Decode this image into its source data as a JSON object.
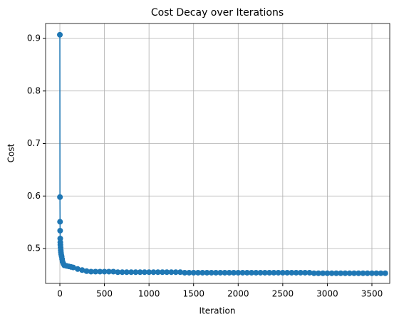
{
  "chart_data": {
    "type": "line",
    "title": "Cost Decay over Iterations",
    "xlabel": "Iteration",
    "ylabel": "Cost",
    "x": [
      0,
      1,
      2,
      3,
      4,
      5,
      6,
      8,
      10,
      12,
      15,
      20,
      25,
      30,
      40,
      50,
      75,
      100,
      125,
      150,
      200,
      250,
      300,
      350,
      400,
      450,
      500,
      550,
      600,
      650,
      700,
      750,
      800,
      850,
      900,
      950,
      1000,
      1050,
      1100,
      1150,
      1200,
      1250,
      1300,
      1350,
      1400,
      1450,
      1500,
      1550,
      1600,
      1650,
      1700,
      1750,
      1800,
      1850,
      1900,
      1950,
      2000,
      2050,
      2100,
      2150,
      2200,
      2250,
      2300,
      2350,
      2400,
      2450,
      2500,
      2550,
      2600,
      2650,
      2700,
      2750,
      2800,
      2850,
      2900,
      2950,
      3000,
      3050,
      3100,
      3150,
      3200,
      3250,
      3300,
      3350,
      3400,
      3450,
      3500,
      3550,
      3600,
      3650
    ],
    "series": [
      {
        "name": "Cost",
        "color": "#1f77b4",
        "values": [
          0.907,
          0.598,
          0.551,
          0.534,
          0.519,
          0.512,
          0.507,
          0.502,
          0.497,
          0.493,
          0.489,
          0.485,
          0.48,
          0.475,
          0.471,
          0.468,
          0.467,
          0.466,
          0.465,
          0.464,
          0.461,
          0.459,
          0.457,
          0.456,
          0.456,
          0.456,
          0.456,
          0.456,
          0.456,
          0.455,
          0.455,
          0.455,
          0.455,
          0.455,
          0.455,
          0.455,
          0.455,
          0.455,
          0.455,
          0.455,
          0.455,
          0.455,
          0.455,
          0.455,
          0.454,
          0.454,
          0.454,
          0.454,
          0.454,
          0.454,
          0.454,
          0.454,
          0.454,
          0.454,
          0.454,
          0.454,
          0.454,
          0.454,
          0.454,
          0.454,
          0.454,
          0.454,
          0.454,
          0.454,
          0.454,
          0.454,
          0.454,
          0.454,
          0.454,
          0.454,
          0.454,
          0.454,
          0.454,
          0.453,
          0.453,
          0.453,
          0.453,
          0.453,
          0.453,
          0.453,
          0.453,
          0.453,
          0.453,
          0.453,
          0.453,
          0.453,
          0.453,
          0.453,
          0.453,
          0.453
        ]
      }
    ],
    "xlim": [
      -160,
      3700
    ],
    "ylim": [
      0.4336,
      0.9285
    ],
    "xticks": [
      0,
      500,
      1000,
      1500,
      2000,
      2500,
      3000,
      3500
    ],
    "yticks": [
      0.5,
      0.6,
      0.7,
      0.8,
      0.9
    ],
    "grid": true
  }
}
